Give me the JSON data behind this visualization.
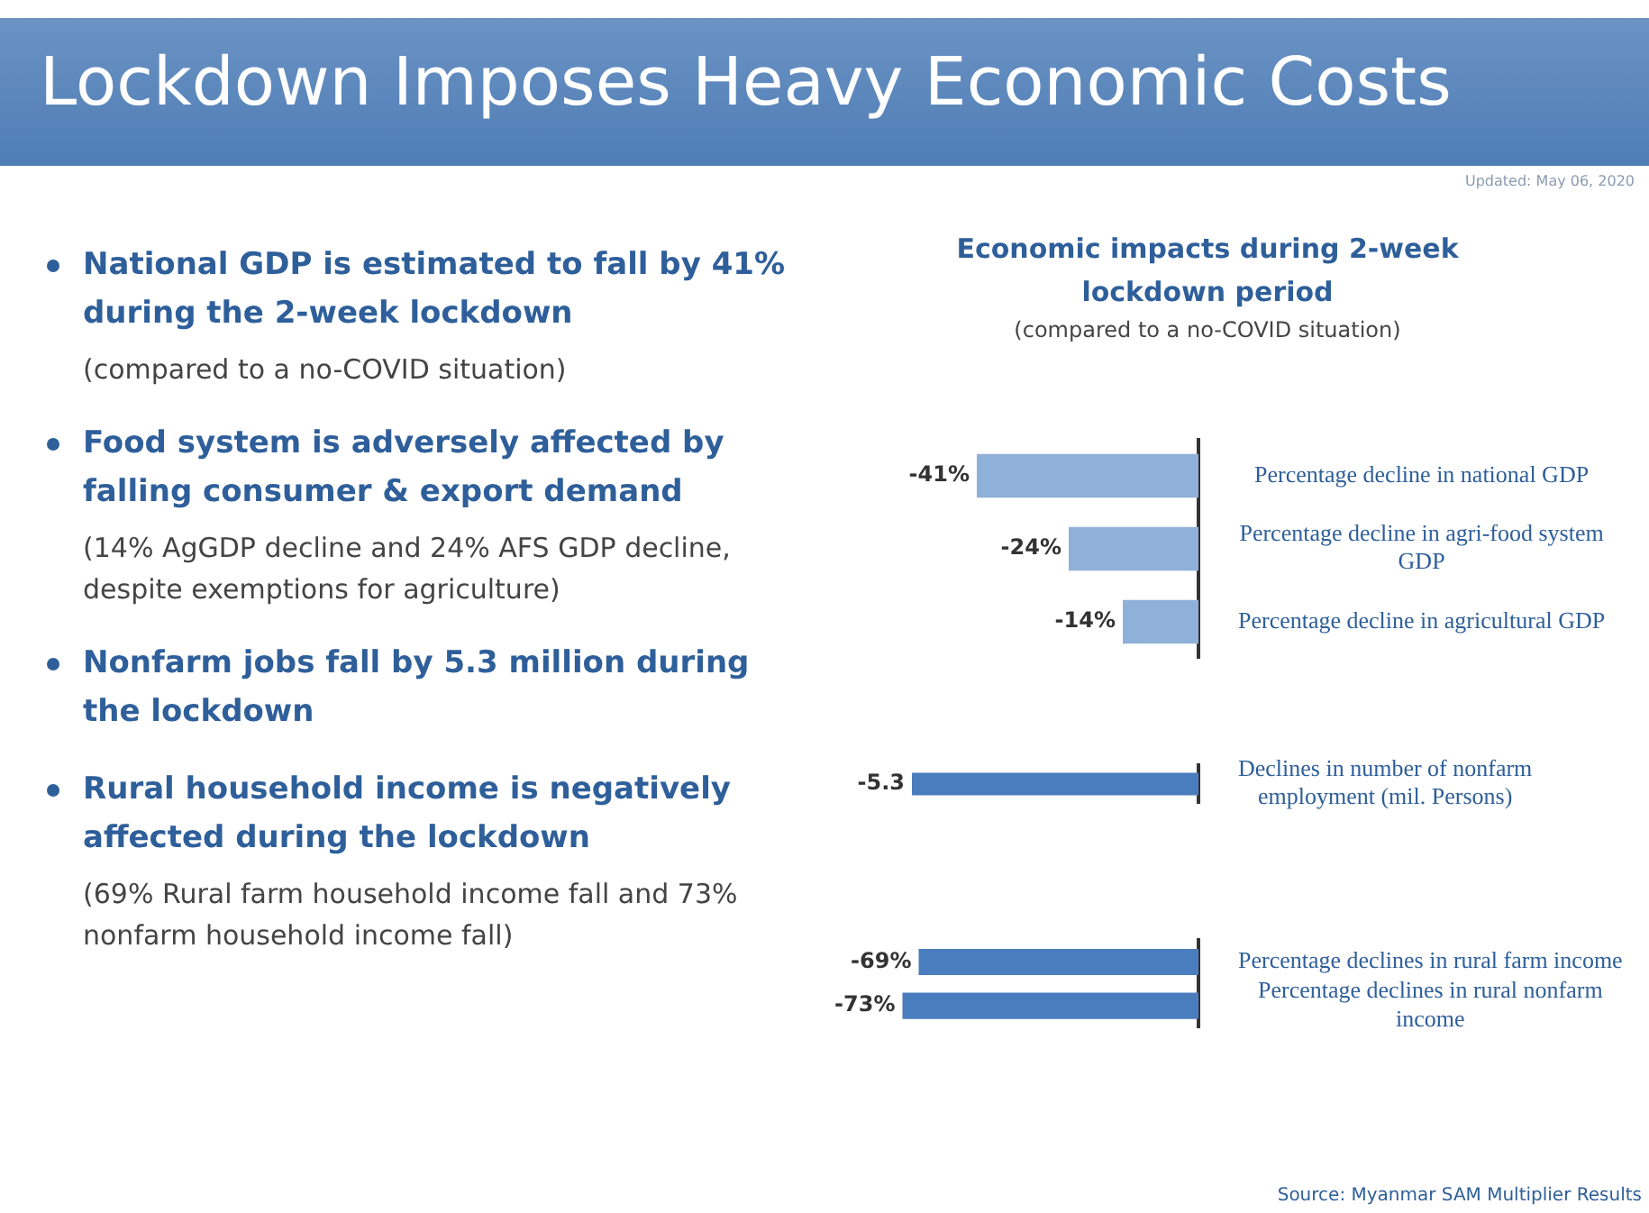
{
  "chart_data": [
    {
      "type": "other",
      "title": "Lockdown Imposes Heavy Economic Costs",
      "annotations": [
        "Updated: May 06, 2020",
        "National GDP is estimated to fall by 41% during the 2-week lockdown",
        "(compared to a no-COVID situation)",
        "Food system is adversely affected by falling consumer & export demand",
        "(14% AgGDP decline and 24% AFS GDP decline, despite exemptions for agriculture)",
        "Nonfarm jobs fall by 5.3 million during the lockdown",
        "Rural household income is negatively affected during the lockdown",
        "(69% Rural farm household income fall and 73% nonfarm household income fall)"
      ]
    },
    {
      "type": "bar",
      "orientation": "horizontal",
      "title": "Economic impacts during 2-week lockdown period",
      "subtitle": "(compared to a no-COVID situation)",
      "categories": [
        "Percentage decline in national GDP",
        "Percentage decline in agri-food system GDP",
        "Percentage decline in agricultural GDP"
      ],
      "values": [
        -41,
        -24,
        -14
      ],
      "value_labels": [
        "-41%",
        "-24%",
        "-14%"
      ],
      "color": "#8fb1d9"
    },
    {
      "type": "bar",
      "orientation": "horizontal",
      "categories": [
        "Declines in number of nonfarm employment (mil. Persons)"
      ],
      "values": [
        -5.3
      ],
      "data_labels": true,
      "color": "#4a7dbd"
    },
    {
      "type": "bar",
      "orientation": "horizontal",
      "categories": [
        "Percentage declines in rural farm income",
        "Percentage declines in rural nonfarm income"
      ],
      "values": [
        -69,
        -73
      ],
      "value_labels": [
        "-69%",
        "-73%"
      ],
      "color": "#4a7dbd",
      "annotations": [
        "Source: Myanmar SAM Multiplier Results"
      ]
    }
  ]
}
